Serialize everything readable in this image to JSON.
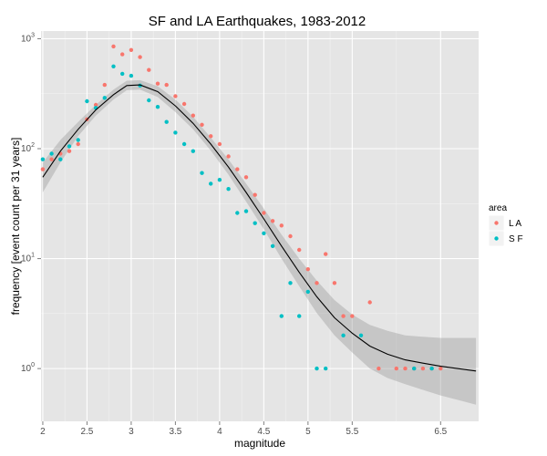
{
  "chart_data": {
    "type": "scatter",
    "title": "SF and LA Earthquakes, 1983-2012",
    "xlabel": "magnitude",
    "ylabel": "frequency [event count per 31 years]",
    "xlim": [
      1.98,
      6.93
    ],
    "ylim_log10": [
      -0.48,
      3.07
    ],
    "y_scale": "log10",
    "x_ticks": [
      2,
      2.5,
      3,
      3.5,
      4,
      4.5,
      5,
      5.5,
      6.5
    ],
    "x_tick_labels": [
      "2",
      "2.5",
      "3",
      "3.5",
      "4",
      "4.5",
      "5",
      "5.5",
      "6.5"
    ],
    "y_ticks": [
      0,
      1,
      2,
      3
    ],
    "y_tick_labels": [
      {
        "base": "10",
        "exp": "0"
      },
      {
        "base": "10",
        "exp": "1"
      },
      {
        "base": "10",
        "exp": "2"
      },
      {
        "base": "10",
        "exp": "3"
      }
    ],
    "grid": true,
    "legend": {
      "title": "area",
      "position": "right"
    },
    "series": [
      {
        "name": "L A",
        "color": "#F8766D",
        "points": [
          [
            2.0,
            65
          ],
          [
            2.1,
            80
          ],
          [
            2.2,
            90
          ],
          [
            2.3,
            95
          ],
          [
            2.4,
            110
          ],
          [
            2.5,
            185
          ],
          [
            2.6,
            250
          ],
          [
            2.7,
            380
          ],
          [
            2.8,
            850
          ],
          [
            2.9,
            720
          ],
          [
            3.0,
            790
          ],
          [
            3.1,
            680
          ],
          [
            3.2,
            520
          ],
          [
            3.3,
            390
          ],
          [
            3.4,
            380
          ],
          [
            3.5,
            300
          ],
          [
            3.6,
            255
          ],
          [
            3.7,
            200
          ],
          [
            3.8,
            165
          ],
          [
            3.9,
            130
          ],
          [
            4.0,
            110
          ],
          [
            4.1,
            85
          ],
          [
            4.2,
            65
          ],
          [
            4.3,
            55
          ],
          [
            4.4,
            38
          ],
          [
            4.5,
            26
          ],
          [
            4.6,
            22
          ],
          [
            4.7,
            20
          ],
          [
            4.8,
            16
          ],
          [
            4.9,
            12
          ],
          [
            5.0,
            8
          ],
          [
            5.1,
            6
          ],
          [
            5.2,
            11
          ],
          [
            5.3,
            6
          ],
          [
            5.4,
            3
          ],
          [
            5.5,
            3
          ],
          [
            5.7,
            4
          ],
          [
            5.8,
            1
          ],
          [
            6.0,
            1
          ],
          [
            6.1,
            1
          ],
          [
            6.2,
            1
          ],
          [
            6.3,
            1
          ],
          [
            6.4,
            1
          ],
          [
            6.5,
            1
          ]
        ]
      },
      {
        "name": "S F",
        "color": "#00BFC4",
        "points": [
          [
            2.0,
            80
          ],
          [
            2.1,
            90
          ],
          [
            2.2,
            80
          ],
          [
            2.3,
            105
          ],
          [
            2.4,
            120
          ],
          [
            2.5,
            270
          ],
          [
            2.6,
            235
          ],
          [
            2.7,
            290
          ],
          [
            2.8,
            560
          ],
          [
            2.9,
            480
          ],
          [
            3.0,
            460
          ],
          [
            3.1,
            375
          ],
          [
            3.2,
            275
          ],
          [
            3.3,
            240
          ],
          [
            3.4,
            175
          ],
          [
            3.5,
            140
          ],
          [
            3.6,
            110
          ],
          [
            3.7,
            95
          ],
          [
            3.8,
            60
          ],
          [
            3.9,
            48
          ],
          [
            4.0,
            52
          ],
          [
            4.1,
            43
          ],
          [
            4.2,
            26
          ],
          [
            4.3,
            27
          ],
          [
            4.4,
            21
          ],
          [
            4.5,
            17
          ],
          [
            4.6,
            13
          ],
          [
            4.7,
            3
          ],
          [
            4.8,
            6
          ],
          [
            4.9,
            3
          ],
          [
            5.0,
            5
          ],
          [
            5.1,
            1
          ],
          [
            5.2,
            1
          ],
          [
            5.4,
            2
          ],
          [
            5.6,
            2
          ],
          [
            6.2,
            1
          ],
          [
            6.4,
            1
          ]
        ]
      }
    ],
    "smooth": {
      "x": [
        2.0,
        2.2,
        2.4,
        2.6,
        2.8,
        2.95,
        3.1,
        3.3,
        3.5,
        3.7,
        3.9,
        4.1,
        4.3,
        4.5,
        4.7,
        4.9,
        5.1,
        5.3,
        5.5,
        5.7,
        5.9,
        6.1,
        6.3,
        6.5,
        6.9
      ],
      "y": [
        55,
        95,
        150,
        225,
        310,
        375,
        380,
        330,
        245,
        170,
        110,
        68,
        40,
        23,
        13,
        7.5,
        4.5,
        2.9,
        2.1,
        1.6,
        1.35,
        1.2,
        1.12,
        1.05,
        0.95
      ],
      "lower": [
        40,
        75,
        130,
        200,
        280,
        340,
        345,
        295,
        215,
        150,
        96,
        58,
        33,
        18.5,
        10,
        5.6,
        3.2,
        2.0,
        1.4,
        1.0,
        0.82,
        0.72,
        0.64,
        0.57,
        0.47
      ],
      "upper": [
        75,
        120,
        175,
        250,
        345,
        415,
        420,
        370,
        280,
        195,
        126,
        80,
        48,
        28.5,
        16.5,
        10,
        6.3,
        4.2,
        3.1,
        2.5,
        2.2,
        2.0,
        1.95,
        1.9,
        1.9
      ]
    }
  }
}
